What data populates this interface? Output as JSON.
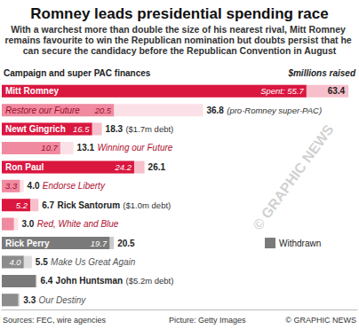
{
  "chart_data": {
    "type": "bar",
    "orientation": "horizontal",
    "data_labels": true,
    "tick_labels": false,
    "grid": false,
    "title": "Romney leads presidential spending race",
    "subtitle": "With a warchest more than double the size of his nearest rival, Mitt Romney remains favourite to win the Republican nomination but doubts persist that he can secure the candidacy before the Republican Convention in August",
    "section_label": "Campaign and super PAC finances",
    "unit_label": "$millions raised",
    "categories": [
      "Mitt Romney",
      "Restore our Future",
      "Newt Gingrich",
      "Winning our Future",
      "Ron Paul",
      "Endorse Liberty",
      "Rick Santorum",
      "Red, White and Blue",
      "Rick Perry",
      "Make Us Great Again",
      "John Huntsman",
      "Our Destiny"
    ],
    "notes": [
      null,
      "(pro-Romney super-PAC)",
      "($1.7m debt)",
      null,
      null,
      null,
      "($1.0m debt)",
      null,
      null,
      null,
      "($5.2m debt)",
      null
    ],
    "series": [
      {
        "name": "raised",
        "values": [
          63.4,
          36.8,
          18.3,
          13.1,
          26.1,
          4.0,
          6.7,
          3.0,
          20.5,
          5.5,
          6.4,
          3.3
        ],
        "value_labels": [
          "63.4",
          "36.8",
          "18.3",
          "13.1",
          "26.1",
          "4.0",
          "6.7",
          "3.0",
          "20.5",
          "5.5",
          "6.4",
          "3.3"
        ],
        "colors": [
          "#f6bfcb",
          "#fbe1e7",
          "#f6bfcb",
          "#fbe1e7",
          "#f6bfcb",
          "#fbe1e7",
          "#f6bfcb",
          "#fbe1e7",
          "#cccccc",
          "#dddddd",
          "#cccccc",
          "#dddddd"
        ]
      },
      {
        "name": "Spent",
        "values": [
          55.7,
          20.5,
          16.5,
          10.7,
          24.2,
          3.3,
          5.2,
          2.2,
          19.7,
          4.0,
          6.2,
          3.0
        ],
        "value_labels": [
          "Spent: 55.7",
          "20.5",
          "16.5",
          "10.7",
          "24.2",
          "3.3",
          "5.2",
          null,
          "19.7",
          "4.0",
          null,
          null
        ],
        "colors": [
          "#d9173f",
          "#ef8aa0",
          "#d9173f",
          "#ef8aa0",
          "#d9173f",
          "#ef8aa0",
          "#d9173f",
          "#ef8aa0",
          "#7a7a7a",
          "#8c8c8c",
          "#7a7a7a",
          "#8c8c8c"
        ]
      }
    ],
    "xlim": [
      0,
      65
    ],
    "withdrawn_key": {
      "text": "Withdrawn",
      "color": "#7a7a7a"
    },
    "watermark": "© GRAPHIC NEWS",
    "sources": "Sources: FEC, wire agencies",
    "picture_credit": "Picture: Getty Images",
    "credit": "© GRAPHIC NEWS"
  }
}
